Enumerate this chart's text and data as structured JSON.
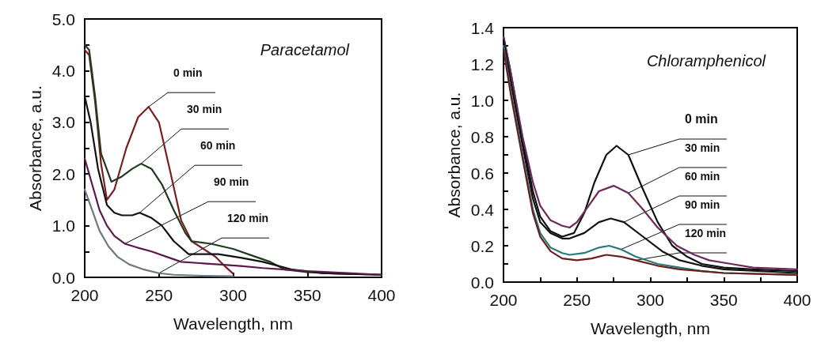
{
  "chart_data": [
    {
      "type": "line",
      "title": "Paracetamol",
      "xlabel": "Wavelength, nm",
      "ylabel": "Absorbance, a.u.",
      "xlim": [
        200,
        400
      ],
      "ylim": [
        0,
        5
      ],
      "xticks": [
        200,
        250,
        300,
        350,
        400
      ],
      "yticks": [
        {
          "value": 0,
          "label": "0.0"
        },
        {
          "value": 0.5,
          "label": null
        },
        {
          "value": 1,
          "label": "1.0"
        },
        {
          "value": 1.5,
          "label": null
        },
        {
          "value": 2,
          "label": "2.0"
        },
        {
          "value": 2.5,
          "label": null
        },
        {
          "value": 3,
          "label": "3.0"
        },
        {
          "value": 3.5,
          "label": null
        },
        {
          "value": 4,
          "label": "4.0"
        },
        {
          "value": 4.5,
          "label": null
        },
        {
          "value": 5,
          "label": "5.0"
        }
      ],
      "grid": false,
      "marker": "none",
      "line_style": "solid",
      "series": [
        {
          "color": "#7a1f1f",
          "x": [
            200,
            203,
            207,
            211,
            215,
            220,
            228,
            236,
            243,
            250,
            258,
            265,
            272,
            280,
            288,
            295,
            300
          ],
          "values": [
            4.4,
            4.3,
            3.4,
            2.2,
            1.5,
            1.7,
            2.5,
            3.1,
            3.3,
            3.0,
            2.0,
            1.1,
            0.7,
            0.55,
            0.4,
            0.2,
            0.07
          ]
        },
        {
          "color": "#1f3a1f",
          "x": [
            200,
            203,
            207,
            211,
            218,
            225,
            232,
            238,
            245,
            252,
            260,
            268,
            272,
            285,
            300,
            315,
            325,
            335,
            350,
            370,
            400
          ],
          "values": [
            4.5,
            4.4,
            3.5,
            2.4,
            1.85,
            1.95,
            2.1,
            2.2,
            2.1,
            1.8,
            1.3,
            0.85,
            0.7,
            0.65,
            0.55,
            0.4,
            0.3,
            0.15,
            0.1,
            0.07,
            0.05
          ]
        },
        {
          "color": "#111111",
          "x": [
            200,
            204,
            209,
            215,
            220,
            225,
            232,
            237,
            245,
            252,
            260,
            270,
            280,
            290,
            305,
            320,
            340,
            360,
            400
          ],
          "values": [
            3.5,
            3.0,
            2.1,
            1.4,
            1.25,
            1.2,
            1.2,
            1.25,
            1.15,
            1.0,
            0.7,
            0.45,
            0.45,
            0.45,
            0.38,
            0.3,
            0.15,
            0.08,
            0.05
          ]
        },
        {
          "color": "#5a1a4a",
          "x": [
            200,
            205,
            210,
            215,
            220,
            227,
            235,
            245,
            255,
            265,
            280,
            290,
            305,
            320,
            335,
            350,
            380,
            400
          ],
          "values": [
            2.3,
            1.8,
            1.3,
            1.0,
            0.8,
            0.65,
            0.58,
            0.5,
            0.4,
            0.3,
            0.27,
            0.25,
            0.22,
            0.18,
            0.15,
            0.12,
            0.08,
            0.05
          ]
        },
        {
          "color": "#6a7a80",
          "x": [
            200,
            205,
            210,
            216,
            222,
            230,
            240,
            250,
            260,
            280,
            300
          ],
          "values": [
            1.7,
            1.3,
            0.9,
            0.6,
            0.4,
            0.25,
            0.15,
            0.08,
            0.05,
            0.03,
            0.02
          ]
        }
      ],
      "annotations": [
        {
          "text": "0 min",
          "x": 243,
          "y": 3.3
        },
        {
          "text": "30 min",
          "x": 238,
          "y": 2.2
        },
        {
          "text": "60 min",
          "x": 237,
          "y": 1.25
        },
        {
          "text": "90 min",
          "x": 227,
          "y": 0.65
        },
        {
          "text": "120 min",
          "x": 250,
          "y": 0.08
        }
      ]
    },
    {
      "type": "line",
      "title": "Chloramphenicol",
      "xlabel": "Wavelength, nm",
      "ylabel": "Absorbance, a.u.",
      "xlim": [
        200,
        400
      ],
      "ylim": [
        0,
        1.4
      ],
      "xticks": [
        200,
        {
          "value": 225,
          "label": null
        },
        250,
        {
          "value": 275,
          "label": null
        },
        300,
        {
          "value": 325,
          "label": null
        },
        350,
        {
          "value": 375,
          "label": null
        },
        400
      ],
      "yticks": [
        {
          "value": 0,
          "label": "0.0"
        },
        {
          "value": 0.1,
          "label": null
        },
        {
          "value": 0.2,
          "label": "0.2"
        },
        {
          "value": 0.3,
          "label": null
        },
        {
          "value": 0.4,
          "label": "0.4"
        },
        {
          "value": 0.5,
          "label": null
        },
        {
          "value": 0.6,
          "label": "0.6"
        },
        {
          "value": 0.7,
          "label": null
        },
        {
          "value": 0.8,
          "label": "0.8"
        },
        {
          "value": 0.9,
          "label": null
        },
        {
          "value": 1,
          "label": "1.0"
        },
        {
          "value": 1.1,
          "label": null
        },
        {
          "value": 1.2,
          "label": "1.2"
        },
        {
          "value": 1.3,
          "label": null
        },
        {
          "value": 1.4,
          "label": "1.4"
        }
      ],
      "grid": false,
      "marker": "none",
      "line_style": "solid",
      "series": [
        {
          "color": "#111111",
          "x": [
            200,
            205,
            213,
            220,
            225,
            232,
            240,
            248,
            255,
            262,
            270,
            277,
            285,
            295,
            305,
            315,
            325,
            335,
            350,
            370,
            400
          ],
          "values": [
            1.35,
            1.15,
            0.78,
            0.5,
            0.36,
            0.28,
            0.25,
            0.27,
            0.38,
            0.55,
            0.7,
            0.75,
            0.7,
            0.51,
            0.33,
            0.2,
            0.14,
            0.1,
            0.08,
            0.07,
            0.06
          ]
        },
        {
          "color": "#6a2a5a",
          "x": [
            200,
            205,
            213,
            220,
            225,
            232,
            240,
            245,
            250,
            258,
            265,
            275,
            285,
            295,
            305,
            318,
            330,
            340,
            355,
            370,
            400
          ],
          "values": [
            1.35,
            1.15,
            0.8,
            0.55,
            0.42,
            0.34,
            0.31,
            0.3,
            0.33,
            0.42,
            0.5,
            0.53,
            0.49,
            0.4,
            0.3,
            0.2,
            0.15,
            0.12,
            0.1,
            0.08,
            0.07
          ]
        },
        {
          "color": "#111111",
          "x": [
            200,
            205,
            213,
            220,
            225,
            232,
            240,
            245,
            255,
            265,
            273,
            282,
            295,
            308,
            320,
            335,
            350,
            400
          ],
          "values": [
            1.33,
            1.1,
            0.75,
            0.46,
            0.33,
            0.27,
            0.24,
            0.24,
            0.27,
            0.33,
            0.35,
            0.33,
            0.25,
            0.17,
            0.12,
            0.09,
            0.07,
            0.05
          ]
        },
        {
          "color": "#2a7a7a",
          "x": [
            200,
            205,
            213,
            220,
            225,
            232,
            240,
            245,
            255,
            265,
            272,
            280,
            290,
            305,
            320,
            335,
            350,
            400
          ],
          "values": [
            1.3,
            1.05,
            0.7,
            0.4,
            0.27,
            0.19,
            0.16,
            0.15,
            0.16,
            0.19,
            0.2,
            0.18,
            0.14,
            0.1,
            0.08,
            0.06,
            0.05,
            0.04
          ]
        },
        {
          "color": "#6a1f1f",
          "x": [
            200,
            205,
            213,
            220,
            225,
            232,
            240,
            250,
            260,
            270,
            280,
            290,
            305,
            320,
            335,
            350,
            400
          ],
          "values": [
            1.28,
            1.03,
            0.68,
            0.38,
            0.25,
            0.17,
            0.13,
            0.12,
            0.13,
            0.15,
            0.14,
            0.12,
            0.09,
            0.07,
            0.06,
            0.05,
            0.04
          ]
        }
      ],
      "annotations": [
        {
          "text": "0 min",
          "x": 285,
          "y": 0.7
        },
        {
          "text": "30 min",
          "x": 285,
          "y": 0.49
        },
        {
          "text": "60 min",
          "x": 282,
          "y": 0.33
        },
        {
          "text": "90 min",
          "x": 280,
          "y": 0.18
        },
        {
          "text": "120 min",
          "x": 290,
          "y": 0.12
        }
      ]
    }
  ]
}
